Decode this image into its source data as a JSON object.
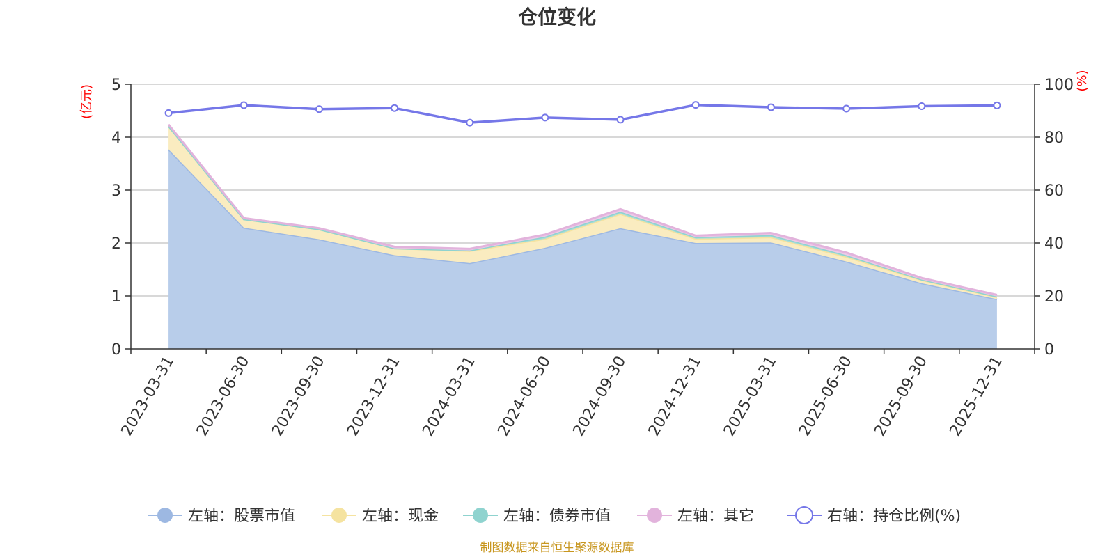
{
  "chart_data": {
    "type": "area",
    "title": "仓位变化",
    "categories": [
      "2023-03-31",
      "2023-06-30",
      "2023-09-30",
      "2023-12-31",
      "2024-03-31",
      "2024-06-30",
      "2024-09-30",
      "2024-12-31",
      "2025-03-31",
      "2025-06-30",
      "2025-09-30",
      "2025-12-31"
    ],
    "left_axis": {
      "unit": "(亿元)",
      "min": 0,
      "max": 5,
      "ticks": [
        "0",
        "1",
        "2",
        "3",
        "4",
        "5"
      ]
    },
    "right_axis": {
      "unit": "(%)",
      "min": 0,
      "max": 100,
      "ticks": [
        "0",
        "20",
        "40",
        "60",
        "80",
        "100"
      ]
    },
    "series": [
      {
        "name": "左轴：股票市值",
        "axis": "left",
        "stacked": true,
        "color": "#9db8e2",
        "fill": "#b8cdea",
        "values": [
          3.77,
          2.29,
          2.07,
          1.77,
          1.62,
          1.91,
          2.28,
          2.0,
          2.01,
          1.65,
          1.24,
          0.94
        ]
      },
      {
        "name": "左轴：现金",
        "axis": "left",
        "stacked": true,
        "color": "#f5e3a0",
        "fill": "#faecc0",
        "values": [
          0.44,
          0.16,
          0.19,
          0.13,
          0.23,
          0.17,
          0.27,
          0.08,
          0.1,
          0.09,
          0.06,
          0.04
        ]
      },
      {
        "name": "左轴：债券市值",
        "axis": "left",
        "stacked": true,
        "color": "#8fd3cf",
        "fill": "#a9ddd9",
        "values": [
          0.0,
          0.0,
          0.0,
          0.0,
          0.01,
          0.04,
          0.04,
          0.03,
          0.04,
          0.03,
          0.01,
          0.01
        ]
      },
      {
        "name": "左轴：其它",
        "axis": "left",
        "stacked": true,
        "color": "#e2b3dc",
        "fill": "#edc9e8",
        "values": [
          0.03,
          0.02,
          0.02,
          0.03,
          0.03,
          0.04,
          0.05,
          0.03,
          0.04,
          0.05,
          0.03,
          0.03
        ]
      },
      {
        "name": "右轴：持仓比例(%)",
        "axis": "right",
        "stacked": false,
        "color": "#7577e8",
        "values": [
          89.1,
          92.1,
          90.6,
          91.0,
          85.5,
          87.4,
          86.6,
          92.2,
          91.3,
          90.8,
          91.7,
          92.0
        ]
      }
    ],
    "legend_position": "bottom",
    "grid": true
  },
  "footer": "制图数据来自恒生聚源数据库"
}
